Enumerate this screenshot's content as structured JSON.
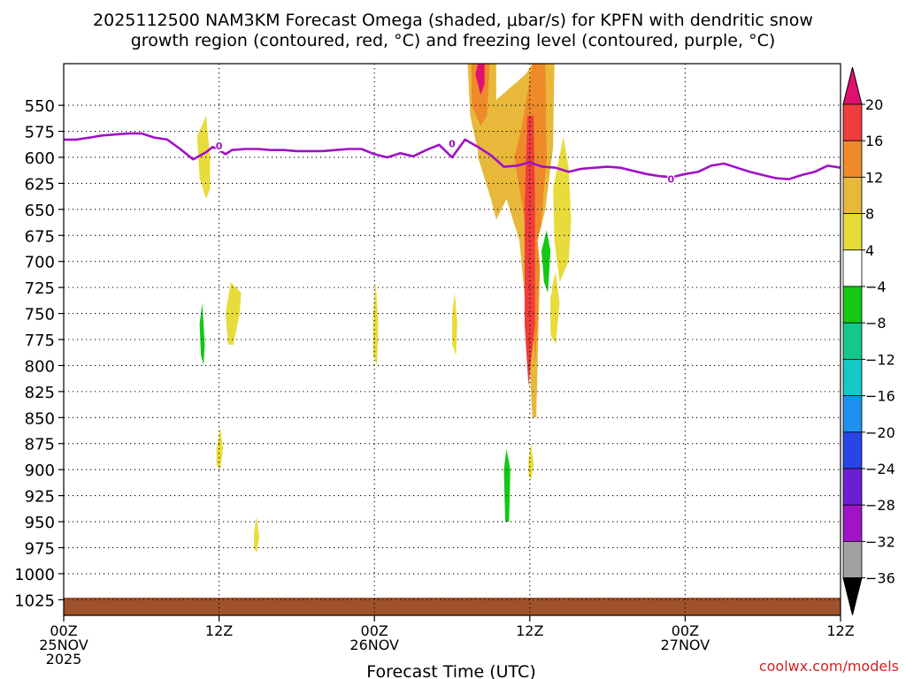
{
  "chart_data": {
    "type": "contour",
    "title_line1": "2025112500 NAM3KM Forecast Omega (shaded, μbar/s) for KPFN with dendritic snow",
    "title_line2": "growth region (contoured, red, °C) and freezing level (contoured, purple, °C)",
    "xlabel": "Forecast Time (UTC)",
    "ylabel": "Pressure (hPa)",
    "credit": "coolwx.com/models",
    "x_range_hours": [
      0,
      60
    ],
    "y_range_hpa": [
      510,
      1040
    ],
    "x_ticks": [
      {
        "hour": 0,
        "labels": [
          "00Z",
          "25NOV",
          "2025"
        ]
      },
      {
        "hour": 12,
        "labels": [
          "12Z"
        ]
      },
      {
        "hour": 24,
        "labels": [
          "00Z",
          "26NOV"
        ]
      },
      {
        "hour": 36,
        "labels": [
          "12Z"
        ]
      },
      {
        "hour": 48,
        "labels": [
          "00Z",
          "27NOV"
        ]
      },
      {
        "hour": 60,
        "labels": [
          "12Z"
        ]
      }
    ],
    "y_ticks": [
      550,
      575,
      600,
      625,
      650,
      675,
      700,
      725,
      750,
      775,
      800,
      825,
      850,
      875,
      900,
      925,
      950,
      975,
      1000,
      1025
    ],
    "colorbar": {
      "labels": [
        "20",
        "16",
        "12",
        "8",
        "4",
        "−4",
        "−8",
        "−12",
        "−16",
        "−20",
        "−24",
        "−28",
        "−32",
        "−36"
      ],
      "values": [
        20,
        16,
        12,
        8,
        4,
        -4,
        -8,
        -12,
        -16,
        -20,
        -24,
        -28,
        -32,
        -36
      ],
      "colors": [
        "#e0106e",
        "#f03c3c",
        "#ef8a2a",
        "#e8b83a",
        "#e8dc3c",
        "#ffffff",
        "#14c814",
        "#14c88c",
        "#14c8c8",
        "#1e90f0",
        "#2846e6",
        "#6e1ed2",
        "#a014c8",
        "#a0a0a0"
      ],
      "top_arrow_color": "#e0106e",
      "bottom_arrow_color": "#000000"
    },
    "freezing_level_hpa": {
      "hours": [
        0,
        1,
        2,
        3,
        4,
        5,
        6,
        7,
        8,
        9,
        10,
        11,
        11.5,
        12,
        12.5,
        13,
        14,
        15,
        16,
        17,
        18,
        19,
        20,
        21,
        22,
        23,
        24,
        25,
        26,
        27,
        28,
        29,
        30,
        31,
        32,
        33,
        34,
        35,
        36,
        37,
        38,
        39,
        40,
        41,
        42,
        43,
        44,
        45,
        46,
        47,
        48,
        49,
        50,
        51,
        52,
        53,
        54,
        55,
        56,
        57,
        58,
        59,
        60
      ],
      "values": [
        583,
        583,
        581,
        579,
        578,
        577,
        577,
        581,
        583,
        592,
        602,
        595,
        590,
        593,
        597,
        593,
        592,
        592,
        593,
        593,
        594,
        594,
        594,
        593,
        592,
        592,
        597,
        600,
        596,
        599,
        593,
        588,
        600,
        583,
        590,
        598,
        609,
        608,
        605,
        609,
        610,
        614,
        611,
        610,
        609,
        610,
        613,
        616,
        618,
        619,
        616,
        614,
        608,
        606,
        610,
        614,
        617,
        620,
        621,
        617,
        614,
        608,
        610
      ]
    },
    "freezing_level_labels": [
      {
        "hour": 12.0,
        "hpa": 589,
        "text": "0"
      },
      {
        "hour": 30.0,
        "hpa": 587,
        "text": "0"
      },
      {
        "hour": 46.9,
        "hpa": 621,
        "text": "0"
      }
    ],
    "omega_regions": [
      {
        "name": "ridge-main",
        "value": 8,
        "points": [
          [
            32.0,
            560
          ],
          [
            35.7,
            520
          ],
          [
            36.2,
            510
          ],
          [
            37.9,
            510
          ],
          [
            37.8,
            590
          ],
          [
            37.3,
            640
          ],
          [
            36.8,
            700
          ],
          [
            36.5,
            850
          ],
          [
            36.2,
            850
          ],
          [
            35.8,
            760
          ],
          [
            35.2,
            680
          ],
          [
            34.2,
            640
          ],
          [
            33.4,
            660
          ],
          [
            33.0,
            640
          ],
          [
            32.0,
            600
          ]
        ]
      },
      {
        "name": "ridge-mid",
        "value": 12,
        "points": [
          [
            34.8,
            600
          ],
          [
            35.4,
            570
          ],
          [
            36.2,
            510
          ],
          [
            37.2,
            510
          ],
          [
            37.3,
            600
          ],
          [
            36.9,
            660
          ],
          [
            36.6,
            760
          ],
          [
            36.4,
            800
          ],
          [
            36.1,
            700
          ],
          [
            35.2,
            630
          ]
        ]
      },
      {
        "name": "ridge-core",
        "value": 16,
        "points": [
          [
            35.6,
            650
          ],
          [
            35.8,
            560
          ],
          [
            36.3,
            560
          ],
          [
            36.4,
            650
          ],
          [
            36.4,
            760
          ],
          [
            35.9,
            820
          ],
          [
            35.6,
            760
          ]
        ]
      },
      {
        "name": "top-cell-outer",
        "value": 8,
        "points": [
          [
            31.4,
            560
          ],
          [
            31.2,
            510
          ],
          [
            33.4,
            510
          ],
          [
            33.4,
            550
          ],
          [
            32.7,
            590
          ],
          [
            32.1,
            600
          ]
        ]
      },
      {
        "name": "top-cell-mid",
        "value": 12,
        "points": [
          [
            31.5,
            550
          ],
          [
            31.5,
            510
          ],
          [
            32.9,
            510
          ],
          [
            32.7,
            560
          ],
          [
            32.2,
            570
          ]
        ]
      },
      {
        "name": "top-cell-core",
        "value": 20,
        "points": [
          [
            31.8,
            520
          ],
          [
            32.0,
            510
          ],
          [
            32.5,
            510
          ],
          [
            32.5,
            530
          ],
          [
            32.2,
            540
          ]
        ]
      },
      {
        "name": "upper-cell-right",
        "value": 4,
        "points": [
          [
            37.8,
            630
          ],
          [
            38.6,
            580
          ],
          [
            39.0,
            610
          ],
          [
            39.2,
            660
          ],
          [
            39.0,
            700
          ],
          [
            38.3,
            720
          ],
          [
            37.9,
            680
          ]
        ]
      },
      {
        "name": "mid-cell-right",
        "value": 4,
        "points": [
          [
            37.6,
            730
          ],
          [
            38.0,
            710
          ],
          [
            38.3,
            740
          ],
          [
            38.0,
            780
          ],
          [
            37.6,
            770
          ]
        ]
      },
      {
        "name": "left-cell-upper",
        "value": 4,
        "points": [
          [
            10.3,
            580
          ],
          [
            11.0,
            560
          ],
          [
            11.3,
            600
          ],
          [
            11.3,
            630
          ],
          [
            11.0,
            640
          ],
          [
            10.5,
            620
          ]
        ]
      },
      {
        "name": "left-cell-lower",
        "value": 4,
        "points": [
          [
            12.5,
            750
          ],
          [
            12.9,
            720
          ],
          [
            13.7,
            730
          ],
          [
            13.6,
            750
          ],
          [
            13.1,
            780
          ],
          [
            12.7,
            780
          ]
        ]
      },
      {
        "name": "small-cell-875",
        "value": 4,
        "points": [
          [
            11.8,
            880
          ],
          [
            12.1,
            860
          ],
          [
            12.3,
            880
          ],
          [
            12.1,
            900
          ],
          [
            11.8,
            895
          ]
        ]
      },
      {
        "name": "small-cell-960",
        "value": 4,
        "points": [
          [
            14.7,
            960
          ],
          [
            14.9,
            945
          ],
          [
            15.1,
            965
          ],
          [
            14.9,
            980
          ],
          [
            14.7,
            975
          ]
        ]
      },
      {
        "name": "thin-cell-24h",
        "value": 4,
        "points": [
          [
            23.9,
            750
          ],
          [
            24.1,
            720
          ],
          [
            24.3,
            760
          ],
          [
            24.2,
            800
          ],
          [
            23.9,
            790
          ]
        ]
      },
      {
        "name": "thin-cell-31h",
        "value": 4,
        "points": [
          [
            30.0,
            750
          ],
          [
            30.2,
            730
          ],
          [
            30.4,
            760
          ],
          [
            30.3,
            790
          ],
          [
            30.0,
            780
          ]
        ]
      },
      {
        "name": "small-cell-36h",
        "value": 4,
        "points": [
          [
            35.9,
            890
          ],
          [
            36.1,
            875
          ],
          [
            36.3,
            895
          ],
          [
            36.1,
            910
          ],
          [
            35.9,
            905
          ]
        ]
      },
      {
        "name": "green-left",
        "value": -4,
        "points": [
          [
            10.2,
            720
          ],
          [
            10.6,
            670
          ],
          [
            11.0,
            700
          ],
          [
            11.0,
            800
          ],
          [
            10.8,
            850
          ],
          [
            10.4,
            800
          ],
          [
            10.3,
            760
          ]
        ]
      },
      {
        "name": "green-teal-left",
        "value": -8,
        "points": [
          [
            10.5,
            760
          ],
          [
            10.7,
            740
          ],
          [
            10.9,
            780
          ],
          [
            10.8,
            800
          ],
          [
            10.6,
            790
          ]
        ]
      },
      {
        "name": "green-mid",
        "value": -4,
        "points": [
          [
            36.6,
            680
          ],
          [
            37.2,
            650
          ],
          [
            37.9,
            680
          ],
          [
            37.7,
            730
          ],
          [
            37.1,
            750
          ],
          [
            36.9,
            720
          ]
        ]
      },
      {
        "name": "teal-mid",
        "value": -8,
        "points": [
          [
            36.9,
            690
          ],
          [
            37.3,
            670
          ],
          [
            37.6,
            690
          ],
          [
            37.4,
            730
          ],
          [
            37.1,
            720
          ]
        ]
      },
      {
        "name": "green-column",
        "value": -4,
        "points": [
          [
            33.3,
            880
          ],
          [
            33.6,
            860
          ],
          [
            34.0,
            760
          ],
          [
            34.4,
            720
          ],
          [
            34.8,
            740
          ],
          [
            34.7,
            800
          ],
          [
            34.9,
            860
          ],
          [
            34.6,
            880
          ],
          [
            35.4,
            890
          ],
          [
            35.4,
            940
          ],
          [
            35.1,
            985
          ],
          [
            34.6,
            990
          ],
          [
            34.1,
            950
          ],
          [
            33.6,
            920
          ]
        ]
      },
      {
        "name": "teal-column",
        "value": -8,
        "points": [
          [
            34.0,
            900
          ],
          [
            34.2,
            880
          ],
          [
            34.5,
            900
          ],
          [
            34.4,
            950
          ],
          [
            34.1,
            950
          ]
        ]
      },
      {
        "name": "green-thin",
        "value": -4,
        "points": [
          [
            32.2,
            730
          ],
          [
            32.4,
            700
          ],
          [
            32.6,
            750
          ],
          [
            32.4,
            770
          ],
          [
            32.2,
            760
          ]
        ]
      },
      {
        "name": "green-900-right",
        "value": -4,
        "points": [
          [
            38.0,
            900
          ],
          [
            38.4,
            890
          ],
          [
            38.5,
            900
          ],
          [
            38.3,
            910
          ]
        ]
      },
      {
        "name": "green-850-right",
        "value": -4,
        "points": [
          [
            39.2,
            850
          ],
          [
            39.6,
            840
          ],
          [
            39.9,
            860
          ],
          [
            40.1,
            880
          ],
          [
            39.8,
            900
          ],
          [
            39.3,
            870
          ]
        ]
      },
      {
        "name": "green-960",
        "value": -4,
        "points": [
          [
            28.9,
            960
          ],
          [
            29.0,
            945
          ],
          [
            29.2,
            955
          ],
          [
            29.1,
            970
          ]
        ]
      },
      {
        "name": "green-top",
        "value": -4,
        "points": [
          [
            39.5,
            540
          ],
          [
            39.6,
            510
          ],
          [
            39.8,
            510
          ],
          [
            39.7,
            560
          ]
        ]
      }
    ],
    "terrain": {
      "name": "surface",
      "color": "#a0522d",
      "surface_hpa": 1023
    }
  }
}
